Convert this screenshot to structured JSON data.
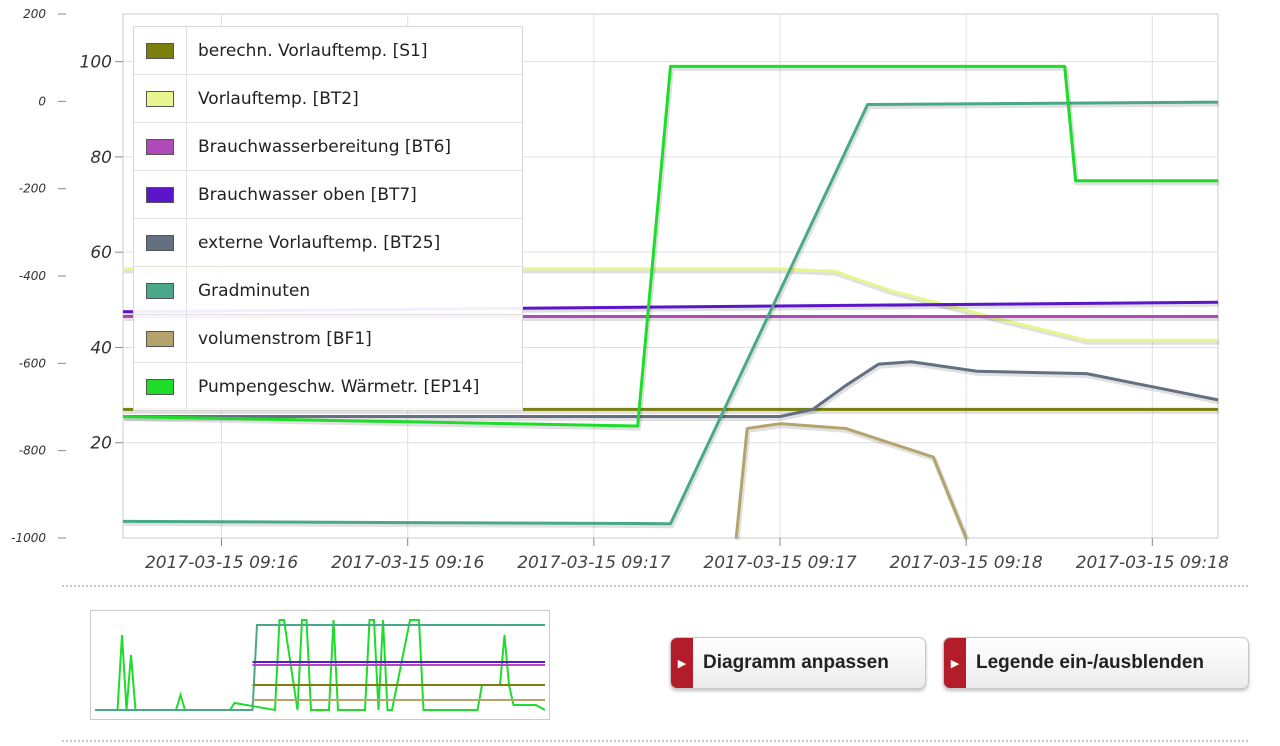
{
  "chart_data": {
    "type": "line",
    "left_axis": {
      "ticks": [
        200,
        0,
        -200,
        -400,
        -600,
        -800,
        -1000
      ],
      "range": [
        -1000,
        200
      ]
    },
    "inner_axis": {
      "ticks": [
        100,
        80,
        60,
        40,
        20
      ],
      "range": [
        0,
        110
      ]
    },
    "x_tick_labels": [
      "2017-03-15 09:16",
      "2017-03-15 09:16",
      "2017-03-15 09:17",
      "2017-03-15 09:17",
      "2017-03-15 09:18",
      "2017-03-15 09:18"
    ],
    "grid": true,
    "legend_placement": "top-left",
    "series": [
      {
        "name": "berechn. Vorlauftemp. [S1]",
        "color": "#7a7f0e",
        "x": [
          0,
          100
        ],
        "y": [
          27,
          27
        ]
      },
      {
        "name": "Vorlauftemp. [BT2]",
        "color": "#e9f58e",
        "x": [
          0,
          60,
          65,
          70,
          80,
          88,
          100
        ],
        "y": [
          56.5,
          56.5,
          56,
          52,
          46,
          41.5,
          41.5
        ]
      },
      {
        "name": "Brauchwasserbereitung [BT6]",
        "color": "#b04ab8",
        "x": [
          0,
          100
        ],
        "y": [
          46.5,
          46.5
        ]
      },
      {
        "name": "Brauchwasser oben [BT7]",
        "color": "#5a16c8",
        "x": [
          0,
          100
        ],
        "y": [
          47.5,
          49.5
        ]
      },
      {
        "name": "externe Vorlauftemp. [BT25]",
        "color": "#647082",
        "x": [
          0,
          60,
          63,
          66,
          69,
          72,
          78,
          88,
          100
        ],
        "y": [
          25.5,
          25.5,
          27,
          32,
          36.5,
          37,
          35,
          34.5,
          29
        ]
      },
      {
        "name": "Gradminuten",
        "color": "#4aa88a",
        "x": [
          0,
          50,
          68,
          100
        ],
        "y": [
          3.5,
          3,
          91,
          91.5
        ]
      },
      {
        "name": "volumenstrom [BF1]",
        "color": "#b4a46c",
        "x": [
          56,
          57,
          60,
          66,
          74,
          77
        ],
        "y": [
          0,
          23,
          24,
          23,
          17,
          0
        ]
      },
      {
        "name": "Pumpengeschw. Wärmetr. [EP14]",
        "color": "#1edc2a",
        "x": [
          0,
          47,
          50,
          86,
          87,
          100
        ],
        "y": [
          25.5,
          23.5,
          99,
          99,
          75,
          75
        ]
      }
    ]
  },
  "legend": {
    "items": [
      {
        "label": "berechn. Vorlauftemp. [S1]",
        "color": "#7a7f0e"
      },
      {
        "label": "Vorlauftemp. [BT2]",
        "color": "#e9f58e"
      },
      {
        "label": "Brauchwasserbereitung [BT6]",
        "color": "#b04ab8"
      },
      {
        "label": "Brauchwasser oben [BT7]",
        "color": "#5a16c8"
      },
      {
        "label": "externe Vorlauftemp. [BT25]",
        "color": "#647082"
      },
      {
        "label": "Gradminuten",
        "color": "#4aa88a"
      },
      {
        "label": "volumenstrom [BF1]",
        "color": "#b4a46c"
      },
      {
        "label": "Pumpengeschw. Wärmetr. [EP14]",
        "color": "#1edc2a"
      }
    ]
  },
  "buttons": {
    "adjust_label": "Diagramm anpassen",
    "legend_label": "Legende ein-/ausblenden",
    "accent": "#b31d2a"
  },
  "overview": {
    "series": [
      {
        "color": "#1edc2a",
        "x": [
          0,
          5,
          6,
          7,
          8,
          9,
          10,
          18,
          19,
          20,
          30,
          31,
          40,
          41,
          42,
          45,
          46,
          47,
          48,
          49,
          50,
          52,
          53,
          54,
          55,
          60,
          61,
          62,
          63,
          64,
          65,
          66,
          70,
          71,
          72,
          73,
          78,
          80,
          82,
          85,
          86,
          90,
          91,
          92,
          93,
          98,
          100
        ],
        "y": [
          5,
          5,
          80,
          5,
          60,
          5,
          5,
          5,
          20,
          5,
          5,
          12,
          5,
          95,
          95,
          5,
          95,
          95,
          5,
          5,
          5,
          5,
          95,
          5,
          5,
          5,
          95,
          95,
          5,
          95,
          5,
          5,
          95,
          95,
          95,
          5,
          5,
          5,
          5,
          5,
          30,
          30,
          80,
          30,
          10,
          10,
          5
        ]
      },
      {
        "color": "#4aa88a",
        "x": [
          0,
          35,
          36,
          100
        ],
        "y": [
          5,
          5,
          90,
          90
        ]
      },
      {
        "color": "#b04ab8",
        "x": [
          35,
          100
        ],
        "y": [
          50,
          50
        ]
      },
      {
        "color": "#5a16c8",
        "x": [
          35,
          100
        ],
        "y": [
          53,
          53
        ]
      },
      {
        "color": "#7a7f0e",
        "x": [
          35,
          100
        ],
        "y": [
          30,
          30
        ]
      },
      {
        "color": "#b4a46c",
        "x": [
          35,
          100
        ],
        "y": [
          15,
          15
        ]
      }
    ]
  }
}
